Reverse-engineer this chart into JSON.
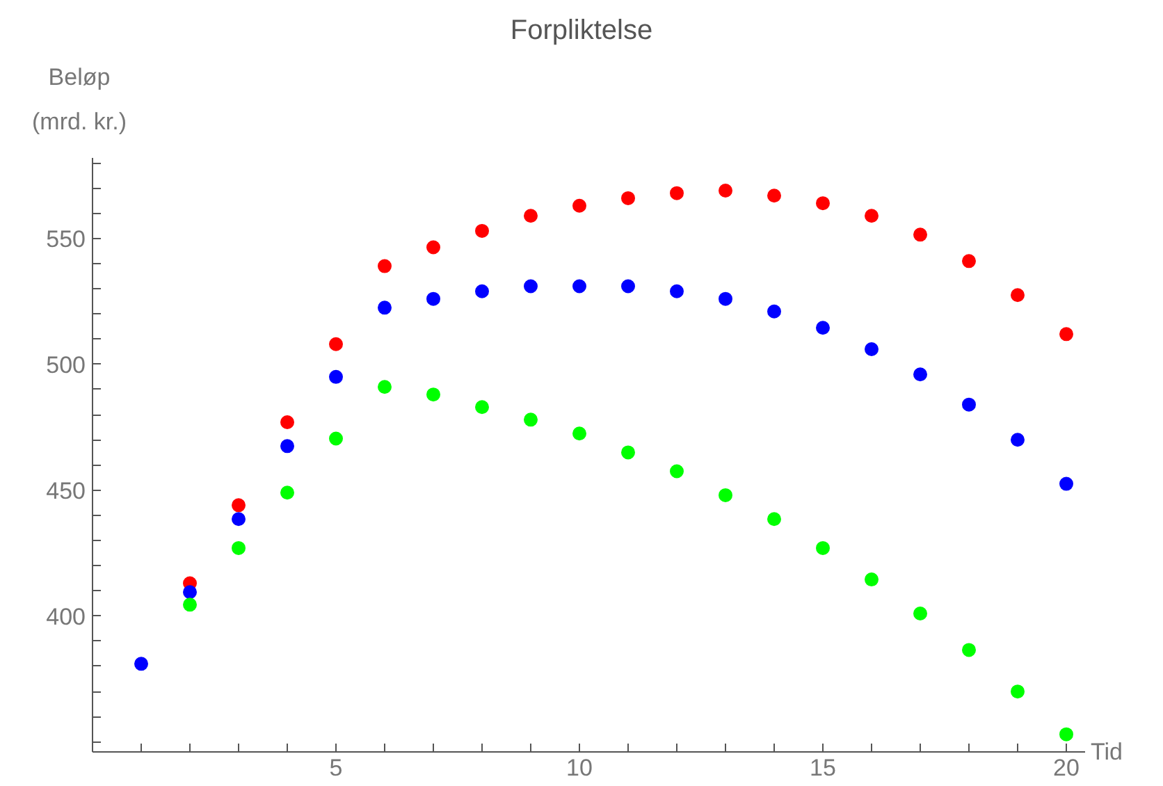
{
  "chart_data": {
    "type": "scatter",
    "title": "Forpliktelse",
    "xlabel": "Tid",
    "ylabel": "Beløp\n(mrd. kr.)",
    "marker": "circle",
    "grid": false,
    "x": [
      1,
      2,
      3,
      4,
      5,
      6,
      7,
      8,
      9,
      10,
      11,
      12,
      13,
      14,
      15,
      16,
      17,
      18,
      19,
      20
    ],
    "xlim": [
      0,
      20.4
    ],
    "ylim": [
      346,
      582
    ],
    "xticks": [
      {
        "value": 1,
        "label": null
      },
      {
        "value": 2,
        "label": null
      },
      {
        "value": 3,
        "label": null
      },
      {
        "value": 4,
        "label": null
      },
      5,
      {
        "value": 6,
        "label": null
      },
      {
        "value": 7,
        "label": null
      },
      {
        "value": 8,
        "label": null
      },
      {
        "value": 9,
        "label": null
      },
      10,
      {
        "value": 11,
        "label": null
      },
      {
        "value": 12,
        "label": null
      },
      {
        "value": 13,
        "label": null
      },
      {
        "value": 14,
        "label": null
      },
      15,
      {
        "value": 16,
        "label": null
      },
      {
        "value": 17,
        "label": null
      },
      {
        "value": 18,
        "label": null
      },
      {
        "value": 19,
        "label": null
      },
      20
    ],
    "yticks": [
      {
        "value": 350,
        "label": null
      },
      {
        "value": 360,
        "label": null
      },
      {
        "value": 370,
        "label": null
      },
      {
        "value": 380,
        "label": null
      },
      {
        "value": 390,
        "label": null
      },
      400,
      {
        "value": 410,
        "label": null
      },
      {
        "value": 420,
        "label": null
      },
      {
        "value": 430,
        "label": null
      },
      {
        "value": 440,
        "label": null
      },
      450,
      {
        "value": 460,
        "label": null
      },
      {
        "value": 470,
        "label": null
      },
      {
        "value": 480,
        "label": null
      },
      {
        "value": 490,
        "label": null
      },
      500,
      {
        "value": 510,
        "label": null
      },
      {
        "value": 520,
        "label": null
      },
      {
        "value": 530,
        "label": null
      },
      {
        "value": 540,
        "label": null
      },
      550,
      {
        "value": 560,
        "label": null
      },
      {
        "value": 570,
        "label": null
      },
      {
        "value": 580,
        "label": null
      }
    ],
    "series": [
      {
        "color": "#ff0000",
        "values": [
          null,
          413,
          444,
          477,
          508,
          539,
          546.5,
          553,
          559,
          563,
          566,
          568,
          569,
          567,
          564,
          559,
          551.5,
          541,
          527.5,
          512
        ]
      },
      {
        "color": "#0000ff",
        "values": [
          381,
          409.5,
          438.5,
          467.5,
          495,
          522.5,
          526,
          529,
          531,
          531,
          531,
          529,
          526,
          521,
          514.5,
          506,
          496,
          484,
          470,
          452.5
        ]
      },
      {
        "color": "#00ff00",
        "values": [
          null,
          404.5,
          427,
          449,
          470.5,
          491,
          488,
          483,
          478,
          472.5,
          465,
          457.5,
          448,
          438.5,
          427,
          414.5,
          401,
          386.5,
          370,
          353
        ]
      }
    ]
  }
}
